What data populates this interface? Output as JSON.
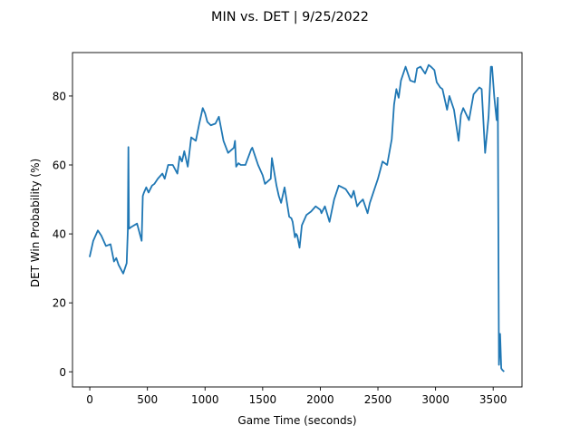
{
  "chart_data": {
    "type": "line",
    "title": "MIN vs. DET | 9/25/2022",
    "xlabel": "Game Time (seconds)",
    "ylabel": "DET Win Probability (%)",
    "xlim": [
      -150,
      3750
    ],
    "ylim": [
      -4.4,
      92.6
    ],
    "xticks": [
      0,
      500,
      1000,
      1500,
      2000,
      2500,
      3000,
      3500
    ],
    "yticks": [
      0,
      20,
      40,
      60,
      80
    ],
    "grid": false,
    "legend": "none",
    "colors": {
      "line": "#1f77b4"
    },
    "series": [
      {
        "x": [
          0,
          30,
          70,
          100,
          140,
          180,
          210,
          230,
          250,
          290,
          320,
          330,
          335,
          340,
          360,
          410,
          450,
          460,
          470,
          490,
          510,
          540,
          560,
          590,
          630,
          650,
          680,
          720,
          760,
          780,
          800,
          820,
          850,
          880,
          920,
          950,
          980,
          1000,
          1020,
          1050,
          1090,
          1120,
          1160,
          1200,
          1250,
          1260,
          1270,
          1290,
          1310,
          1350,
          1400,
          1410,
          1440,
          1460,
          1500,
          1520,
          1570,
          1580,
          1620,
          1640,
          1660,
          1690,
          1730,
          1750,
          1760,
          1780,
          1790,
          1800,
          1820,
          1840,
          1880,
          1920,
          1960,
          2000,
          2010,
          2040,
          2080,
          2120,
          2160,
          2190,
          2220,
          2250,
          2270,
          2290,
          2320,
          2340,
          2370,
          2410,
          2430,
          2460,
          2500,
          2540,
          2580,
          2620,
          2640,
          2660,
          2680,
          2700,
          2740,
          2780,
          2820,
          2840,
          2870,
          2910,
          2940,
          2960,
          2990,
          3010,
          3040,
          3060,
          3100,
          3120,
          3160,
          3200,
          3220,
          3240,
          3290,
          3330,
          3380,
          3400,
          3430,
          3460,
          3480,
          3490,
          3510,
          3530,
          3540,
          3550,
          3560,
          3570,
          3580,
          3590
        ],
        "y": [
          33.5,
          38,
          41,
          39.5,
          36.5,
          37,
          32,
          33,
          31,
          28.5,
          31.5,
          41,
          65.2,
          41.5,
          42,
          43,
          38,
          51,
          52,
          53.5,
          52,
          54,
          54.5,
          56,
          57.5,
          56,
          60,
          60,
          57.5,
          62.5,
          61,
          64,
          59.5,
          68,
          67,
          72,
          76.5,
          75,
          72.5,
          71.5,
          72,
          74,
          67,
          63.5,
          65,
          67,
          59.5,
          60.5,
          60,
          60,
          64.5,
          65,
          62,
          60,
          57,
          54.5,
          56,
          62,
          54,
          51,
          49,
          53.5,
          45,
          44.5,
          43.5,
          39,
          40,
          39.5,
          36,
          42.5,
          45.5,
          46.5,
          48,
          47,
          46,
          48,
          43.5,
          50,
          54,
          53.5,
          53,
          51.5,
          50.5,
          52.5,
          48,
          49,
          50,
          46,
          49,
          52,
          56,
          61,
          60,
          67.5,
          77.5,
          82,
          79.5,
          84.5,
          88.5,
          84.5,
          84,
          88,
          88.5,
          86.5,
          89,
          88.5,
          87.5,
          84,
          82.5,
          82,
          76,
          80,
          76,
          67,
          74.5,
          76.5,
          73,
          80.5,
          82.5,
          82,
          63.5,
          74,
          88.5,
          88.5,
          79.5,
          73,
          79.5,
          2,
          11,
          1,
          0.5,
          0.2
        ]
      }
    ]
  }
}
